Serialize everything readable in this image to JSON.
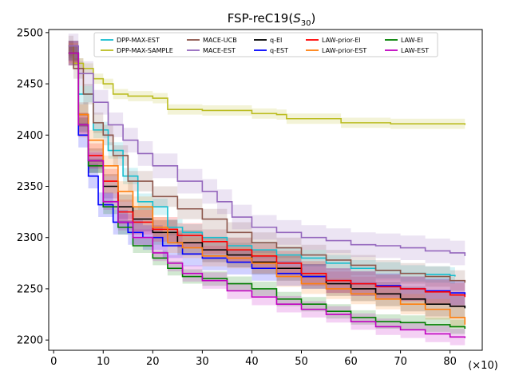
{
  "chart_data": {
    "type": "line",
    "title": "FSP-reC19(",
    "title_math": "S",
    "title_sub": "30",
    "title_close": ")",
    "xlabel": "",
    "ylabel": "",
    "x_multiplier_label": "(×10)",
    "xlim": [
      -1,
      86.5
    ],
    "ylim": [
      2190,
      2503
    ],
    "xticks": [
      0,
      10,
      20,
      30,
      40,
      50,
      60,
      70,
      80
    ],
    "yticks": [
      2200,
      2250,
      2300,
      2350,
      2400,
      2450,
      2500
    ],
    "grid": false,
    "legend_position": "top",
    "series": [
      {
        "name": "DPP-MAX-EST",
        "color": "#17becf",
        "band": 8,
        "points": [
          [
            3,
            2480
          ],
          [
            5,
            2440
          ],
          [
            8,
            2405
          ],
          [
            11,
            2385
          ],
          [
            14,
            2360
          ],
          [
            17,
            2335
          ],
          [
            20,
            2330
          ],
          [
            23,
            2310
          ],
          [
            26,
            2305
          ],
          [
            30,
            2300
          ],
          [
            35,
            2292
          ],
          [
            40,
            2288
          ],
          [
            45,
            2283
          ],
          [
            50,
            2280
          ],
          [
            55,
            2275
          ],
          [
            60,
            2270
          ],
          [
            65,
            2268
          ],
          [
            70,
            2265
          ],
          [
            75,
            2264
          ],
          [
            80,
            2263
          ],
          [
            81,
            2262
          ]
        ]
      },
      {
        "name": "DPP-MAX-SAMPLE",
        "color": "#bcbd22",
        "band": 5,
        "points": [
          [
            3,
            2487
          ],
          [
            4,
            2470
          ],
          [
            6,
            2465
          ],
          [
            8,
            2455
          ],
          [
            10,
            2450
          ],
          [
            12,
            2440
          ],
          [
            15,
            2438
          ],
          [
            20,
            2436
          ],
          [
            23,
            2425
          ],
          [
            30,
            2424
          ],
          [
            40,
            2421
          ],
          [
            45,
            2420
          ],
          [
            47,
            2416
          ],
          [
            55,
            2416
          ],
          [
            58,
            2412
          ],
          [
            65,
            2412
          ],
          [
            68,
            2411
          ],
          [
            83,
            2410
          ]
        ]
      },
      {
        "name": "MACE-UCB",
        "color": "#8c564b",
        "band": 10,
        "points": [
          [
            3,
            2487
          ],
          [
            4,
            2465
          ],
          [
            6,
            2440
          ],
          [
            8,
            2412
          ],
          [
            10,
            2400
          ],
          [
            12,
            2380
          ],
          [
            15,
            2355
          ],
          [
            20,
            2340
          ],
          [
            25,
            2328
          ],
          [
            30,
            2318
          ],
          [
            35,
            2305
          ],
          [
            40,
            2295
          ],
          [
            45,
            2290
          ],
          [
            50,
            2283
          ],
          [
            55,
            2278
          ],
          [
            60,
            2273
          ],
          [
            65,
            2268
          ],
          [
            70,
            2265
          ],
          [
            75,
            2262
          ],
          [
            80,
            2258
          ],
          [
            83,
            2256
          ]
        ]
      },
      {
        "name": "MACE-EST",
        "color": "#9467bd",
        "band": 12,
        "points": [
          [
            3,
            2487
          ],
          [
            5,
            2460
          ],
          [
            8,
            2432
          ],
          [
            11,
            2410
          ],
          [
            14,
            2395
          ],
          [
            17,
            2382
          ],
          [
            20,
            2370
          ],
          [
            25,
            2355
          ],
          [
            30,
            2345
          ],
          [
            33,
            2335
          ],
          [
            36,
            2320
          ],
          [
            40,
            2310
          ],
          [
            45,
            2305
          ],
          [
            50,
            2300
          ],
          [
            55,
            2297
          ],
          [
            60,
            2293
          ],
          [
            65,
            2292
          ],
          [
            70,
            2290
          ],
          [
            75,
            2287
          ],
          [
            80,
            2285
          ],
          [
            83,
            2282
          ]
        ]
      },
      {
        "name": "q-EI",
        "color": "#000000",
        "band": 12,
        "points": [
          [
            3,
            2480
          ],
          [
            5,
            2420
          ],
          [
            7,
            2375
          ],
          [
            10,
            2350
          ],
          [
            13,
            2330
          ],
          [
            16,
            2318
          ],
          [
            20,
            2305
          ],
          [
            25,
            2295
          ],
          [
            30,
            2288
          ],
          [
            35,
            2283
          ],
          [
            40,
            2276
          ],
          [
            45,
            2270
          ],
          [
            50,
            2262
          ],
          [
            55,
            2255
          ],
          [
            60,
            2250
          ],
          [
            65,
            2245
          ],
          [
            70,
            2240
          ],
          [
            75,
            2235
          ],
          [
            80,
            2233
          ],
          [
            83,
            2231
          ]
        ]
      },
      {
        "name": "q-EST",
        "color": "#0000ff",
        "band": 12,
        "points": [
          [
            3,
            2480
          ],
          [
            5,
            2400
          ],
          [
            7,
            2360
          ],
          [
            9,
            2332
          ],
          [
            12,
            2315
          ],
          [
            15,
            2305
          ],
          [
            18,
            2300
          ],
          [
            22,
            2292
          ],
          [
            26,
            2284
          ],
          [
            30,
            2280
          ],
          [
            35,
            2276
          ],
          [
            40,
            2270
          ],
          [
            45,
            2265
          ],
          [
            50,
            2262
          ],
          [
            55,
            2258
          ],
          [
            60,
            2255
          ],
          [
            65,
            2253
          ],
          [
            70,
            2250
          ],
          [
            75,
            2248
          ],
          [
            80,
            2246
          ],
          [
            83,
            2244
          ]
        ]
      },
      {
        "name": "LAW-prior-EI",
        "color": "#ff0000",
        "band": 12,
        "points": [
          [
            3,
            2480
          ],
          [
            5,
            2410
          ],
          [
            7,
            2380
          ],
          [
            10,
            2355
          ],
          [
            13,
            2325
          ],
          [
            16,
            2315
          ],
          [
            20,
            2308
          ],
          [
            25,
            2302
          ],
          [
            30,
            2296
          ],
          [
            35,
            2288
          ],
          [
            40,
            2282
          ],
          [
            45,
            2275
          ],
          [
            50,
            2265
          ],
          [
            55,
            2258
          ],
          [
            60,
            2255
          ],
          [
            65,
            2252
          ],
          [
            70,
            2250
          ],
          [
            75,
            2247
          ],
          [
            80,
            2244
          ],
          [
            83,
            2242
          ]
        ]
      },
      {
        "name": "LAW-prior-EST",
        "color": "#ff7f0e",
        "band": 10,
        "points": [
          [
            3,
            2480
          ],
          [
            5,
            2420
          ],
          [
            7,
            2395
          ],
          [
            10,
            2370
          ],
          [
            13,
            2345
          ],
          [
            16,
            2330
          ],
          [
            20,
            2310
          ],
          [
            23,
            2295
          ],
          [
            26,
            2290
          ],
          [
            30,
            2282
          ],
          [
            35,
            2280
          ],
          [
            40,
            2275
          ],
          [
            45,
            2262
          ],
          [
            50,
            2255
          ],
          [
            55,
            2250
          ],
          [
            60,
            2245
          ],
          [
            65,
            2240
          ],
          [
            70,
            2235
          ],
          [
            75,
            2230
          ],
          [
            80,
            2222
          ],
          [
            83,
            2215
          ]
        ]
      },
      {
        "name": "LAW-EI",
        "color": "#008000",
        "band": 7,
        "points": [
          [
            3,
            2480
          ],
          [
            5,
            2410
          ],
          [
            7,
            2370
          ],
          [
            10,
            2330
          ],
          [
            13,
            2310
          ],
          [
            16,
            2292
          ],
          [
            20,
            2280
          ],
          [
            23,
            2270
          ],
          [
            26,
            2262
          ],
          [
            30,
            2260
          ],
          [
            35,
            2255
          ],
          [
            40,
            2250
          ],
          [
            45,
            2240
          ],
          [
            50,
            2235
          ],
          [
            55,
            2228
          ],
          [
            60,
            2222
          ],
          [
            65,
            2218
          ],
          [
            70,
            2217
          ],
          [
            75,
            2215
          ],
          [
            80,
            2213
          ],
          [
            83,
            2211
          ]
        ]
      },
      {
        "name": "LAW-EST",
        "color": "#c000c0",
        "band": 8,
        "points": [
          [
            3,
            2480
          ],
          [
            5,
            2410
          ],
          [
            7,
            2375
          ],
          [
            10,
            2335
          ],
          [
            13,
            2315
          ],
          [
            16,
            2300
          ],
          [
            20,
            2285
          ],
          [
            23,
            2275
          ],
          [
            26,
            2265
          ],
          [
            30,
            2258
          ],
          [
            35,
            2248
          ],
          [
            40,
            2242
          ],
          [
            45,
            2235
          ],
          [
            50,
            2230
          ],
          [
            55,
            2225
          ],
          [
            60,
            2218
          ],
          [
            65,
            2213
          ],
          [
            70,
            2210
          ],
          [
            75,
            2206
          ],
          [
            80,
            2203
          ],
          [
            83,
            2202
          ]
        ]
      }
    ]
  }
}
